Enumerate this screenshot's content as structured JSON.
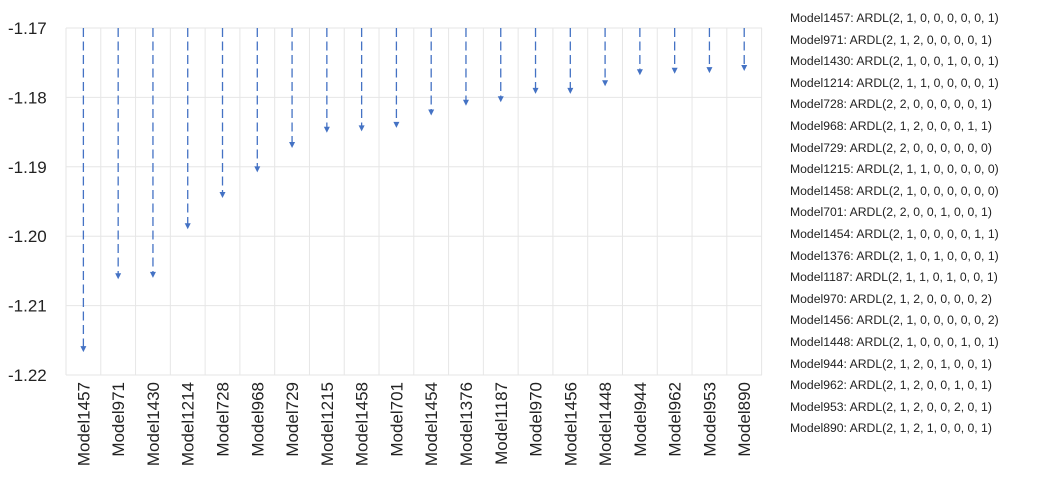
{
  "chart_data": {
    "type": "bar",
    "orientation": "vertical",
    "bar_style": "dashed arrow",
    "categories": [
      "Model1457",
      "Model971",
      "Model1430",
      "Model1214",
      "Model728",
      "Model968",
      "Model729",
      "Model1215",
      "Model1458",
      "Model701",
      "Model1454",
      "Model1376",
      "Model1187",
      "Model970",
      "Model1456",
      "Model1448",
      "Model944",
      "Model962",
      "Model953",
      "Model890"
    ],
    "values": [
      -1.2167,
      -1.2062,
      -1.206,
      -1.199,
      -1.1945,
      -1.1908,
      -1.1873,
      -1.1851,
      -1.1849,
      -1.1844,
      -1.1826,
      -1.1812,
      -1.1807,
      -1.1795,
      -1.1795,
      -1.1784,
      -1.1768,
      -1.1766,
      -1.1765,
      -1.1762
    ],
    "baseline": -1.17,
    "ylim": [
      -1.22,
      -1.17
    ],
    "yticks": [
      "-1.17",
      "-1.18",
      "-1.19",
      "-1.20",
      "-1.21",
      "-1.22"
    ],
    "grid": true,
    "legend_position": "right",
    "legend_entries": [
      "Model1457: ARDL(2, 1, 0, 0, 0, 0, 0, 1)",
      "Model971: ARDL(2, 1, 2, 0, 0, 0, 0, 1)",
      "Model1430: ARDL(2, 1, 0, 0, 1, 0, 0, 1)",
      "Model1214: ARDL(2, 1, 1, 0, 0, 0, 0, 1)",
      "Model728: ARDL(2, 2, 0, 0, 0, 0, 0, 1)",
      "Model968: ARDL(2, 1, 2, 0, 0, 0, 1, 1)",
      "Model729: ARDL(2, 2, 0, 0, 0, 0, 0, 0)",
      "Model1215: ARDL(2, 1, 1, 0, 0, 0, 0, 0)",
      "Model1458: ARDL(2, 1, 0, 0, 0, 0, 0, 0)",
      "Model701: ARDL(2, 2, 0, 0, 1, 0, 0, 1)",
      "Model1454: ARDL(2, 1, 0, 0, 0, 0, 1, 1)",
      "Model1376: ARDL(2, 1, 0, 1, 0, 0, 0, 1)",
      "Model1187: ARDL(2, 1, 1, 0, 1, 0, 0, 1)",
      "Model970: ARDL(2, 1, 2, 0, 0, 0, 0, 2)",
      "Model1456: ARDL(2, 1, 0, 0, 0, 0, 0, 2)",
      "Model1448: ARDL(2, 1, 0, 0, 0, 1, 0, 1)",
      "Model944: ARDL(2, 1, 2, 0, 1, 0, 0, 1)",
      "Model962: ARDL(2, 1, 2, 0, 0, 1, 0, 1)",
      "Model953: ARDL(2, 1, 2, 0, 0, 2, 0, 1)",
      "Model890: ARDL(2, 1, 2, 1, 0, 0, 0, 1)"
    ],
    "colors": {
      "bar": "#4472c4",
      "grid": "#e6e6e6"
    }
  }
}
